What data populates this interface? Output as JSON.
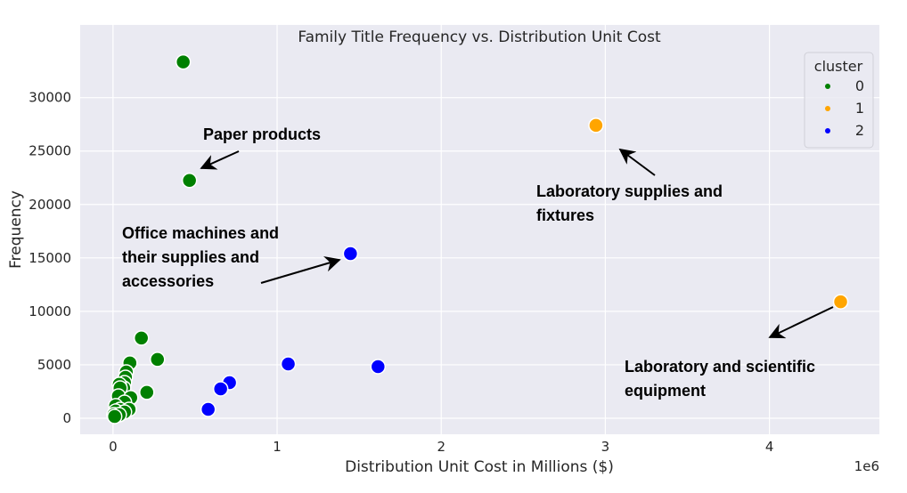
{
  "chart_data": {
    "type": "scatter",
    "title": "Family Title Frequency vs. Distribution Unit Cost",
    "xlabel": "Distribution Unit Cost in Millions ($)",
    "ylabel": "Frequency",
    "x_offset_label": "1e6",
    "xlim": [
      -0.2,
      4.67
    ],
    "ylim": [
      -1500,
      36800
    ],
    "xticks": [
      0,
      1,
      2,
      3,
      4
    ],
    "yticks": [
      0,
      5000,
      10000,
      15000,
      20000,
      25000,
      30000
    ],
    "grid": true,
    "legend": {
      "title": "cluster",
      "placement": "top-right",
      "entries": [
        "0",
        "1",
        "2"
      ]
    },
    "colors": {
      "0": "#008000",
      "1": "#ffa500",
      "2": "#0000ff"
    },
    "series": [
      {
        "name": "0",
        "points": [
          [
            0.428,
            33330
          ],
          [
            0.466,
            22250
          ],
          [
            0.173,
            7500
          ],
          [
            0.271,
            5500
          ],
          [
            0.103,
            5170
          ],
          [
            0.081,
            4330
          ],
          [
            0.076,
            3830
          ],
          [
            0.07,
            3330
          ],
          [
            0.065,
            2830
          ],
          [
            0.038,
            3170
          ],
          [
            0.043,
            2830
          ],
          [
            0.206,
            2420
          ],
          [
            0.033,
            2080
          ],
          [
            0.108,
            1920
          ],
          [
            0.07,
            1500
          ],
          [
            0.016,
            1170
          ],
          [
            0.043,
            830
          ],
          [
            0.098,
            830
          ],
          [
            0.016,
            670
          ],
          [
            0.07,
            580
          ],
          [
            0.005,
            330
          ],
          [
            0.038,
            330
          ],
          [
            0.01,
            170
          ]
        ]
      },
      {
        "name": "1",
        "points": [
          [
            2.943,
            27400
          ],
          [
            4.434,
            10900
          ]
        ]
      },
      {
        "name": "2",
        "points": [
          [
            1.447,
            15400
          ],
          [
            1.068,
            5080
          ],
          [
            1.615,
            4830
          ],
          [
            0.71,
            3330
          ],
          [
            0.656,
            2750
          ],
          [
            0.58,
            830
          ]
        ]
      }
    ],
    "annotations": [
      {
        "lines": [
          "Paper products"
        ]
      },
      {
        "lines": [
          "Laboratory supplies and",
          "fixtures"
        ]
      },
      {
        "lines": [
          "Office machines and",
          "their supplies and",
          "accessories"
        ]
      },
      {
        "lines": [
          "Laboratory and scientific",
          "equipment"
        ]
      }
    ]
  }
}
